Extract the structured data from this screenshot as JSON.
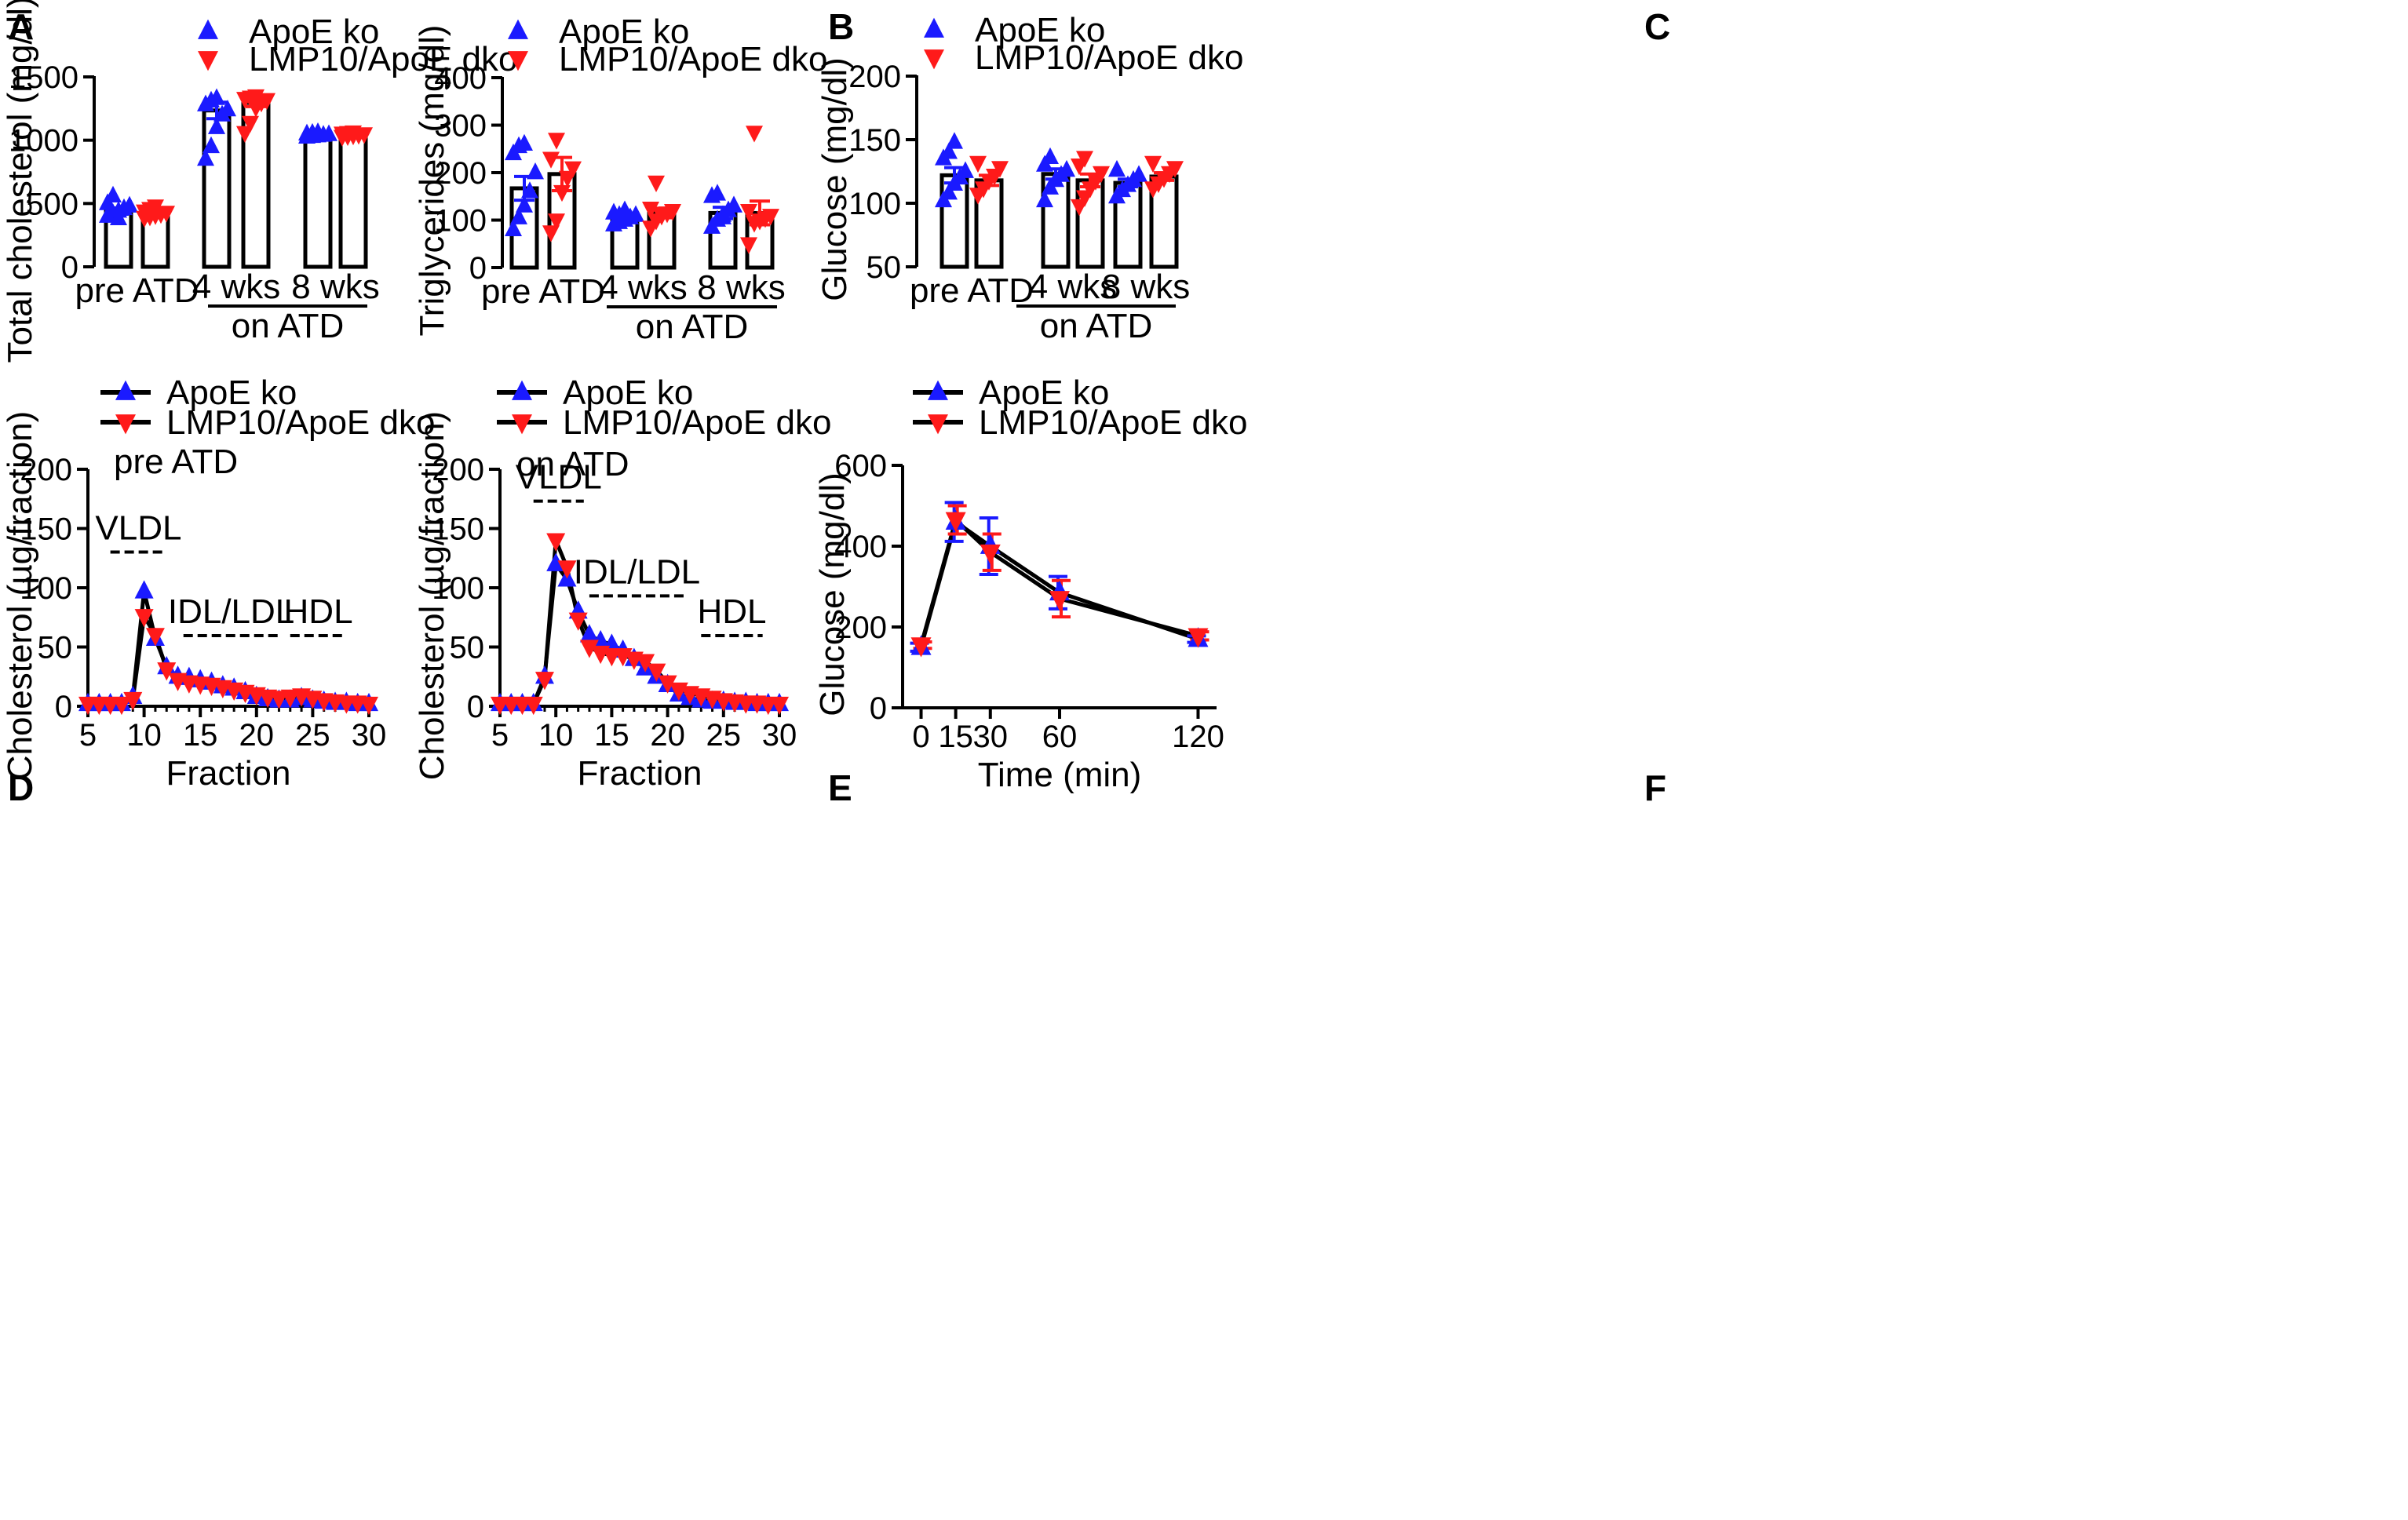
{
  "colors": {
    "series_a": "#1a1aff",
    "series_b": "#ff1a1a",
    "axis": "#000000"
  },
  "series_names": {
    "a": "ApoE ko",
    "b": "LMP10/ApoE dko"
  },
  "chart_data": [
    {
      "panel": "A",
      "type": "bar",
      "ylabel": "Total cholesterol (mg/dl)",
      "ylim": [
        0,
        1500
      ],
      "yticks": [
        "0",
        "500",
        "1000",
        "1500"
      ],
      "categories": [
        "pre ATD",
        "4 wks",
        "8 wks"
      ],
      "group_label": "on ATD",
      "legend": [
        "ApoE ko",
        "LMP10/ApoE dko"
      ],
      "series": [
        {
          "name": "ApoE ko",
          "values": [
            440,
            1235,
            1040
          ],
          "sem": [
            25,
            65,
            8
          ],
          "points": [
            [
              400,
              420,
              440,
              460,
              480,
              500,
              560,
              380
            ],
            [
              850,
              950,
              1100,
              1200,
              1240,
              1280,
              1310,
              1330
            ],
            [
              1025,
              1030,
              1035,
              1040,
              1045,
              1050,
              1055,
              1060
            ]
          ]
        },
        {
          "name": "LMP10/ApoE dko",
          "values": [
            415,
            1295,
            1045
          ],
          "sem": [
            15,
            30,
            6
          ],
          "points": [
            [
              390,
              400,
              410,
              420,
              430,
              440,
              460,
              480
            ],
            [
              1060,
              1140,
              1260,
              1300,
              1320,
              1330,
              1340,
              1350
            ],
            [
              1030,
              1035,
              1040,
              1045,
              1050,
              1055,
              1060,
              1065
            ]
          ]
        }
      ]
    },
    {
      "panel": "B",
      "type": "bar",
      "ylabel": "Triglycerides (mg/dl)",
      "ylim": [
        0,
        400
      ],
      "yticks": [
        "0",
        "100",
        "200",
        "300",
        "400"
      ],
      "categories": [
        "pre ATD",
        "4 wks",
        "8 wks"
      ],
      "group_label": "on ATD",
      "legend": [
        "ApoE ko",
        "LMP10/ApoE dko"
      ],
      "series": [
        {
          "name": "ApoE ko",
          "values": [
            167,
            105,
            115
          ],
          "sem": [
            25,
            8,
            12
          ],
          "points": [
            [
              80,
              105,
              130,
              160,
              200,
              240,
              255,
              260
            ],
            [
              90,
              95,
              100,
              105,
              110,
              115,
              110,
              120
            ],
            [
              85,
              100,
              110,
              120,
              130,
              150,
              155,
              105
            ]
          ]
        },
        {
          "name": "LMP10/ApoE dko",
          "values": [
            197,
            115,
            115
          ],
          "sem": [
            35,
            10,
            25
          ],
          "points": [
            [
              75,
              100,
              160,
              190,
              210,
              230,
              270
            ],
            [
              85,
              100,
              110,
              115,
              120,
              125,
              180
            ],
            [
              50,
              95,
              100,
              105,
              110,
              120,
              285
            ]
          ]
        }
      ]
    },
    {
      "panel": "C",
      "type": "bar",
      "ylabel": "Glucose (mg/dl)",
      "ylim": [
        50,
        200
      ],
      "yticks": [
        "50",
        "100",
        "150",
        "200"
      ],
      "categories": [
        "pre ATD",
        "4 wks",
        "8 wks"
      ],
      "group_label": "on ATD",
      "legend": [
        "ApoE ko",
        "LMP10/ApoE dko"
      ],
      "series": [
        {
          "name": "ApoE ko",
          "values": [
            122,
            123,
            116
          ],
          "sem": [
            6,
            4,
            3
          ],
          "points": [
            [
              102,
              108,
              115,
              120,
              125,
              135,
              140,
              148
            ],
            [
              102,
              112,
              118,
              122,
              126,
              130,
              136
            ],
            [
              105,
              110,
              114,
              118,
              122,
              126
            ]
          ]
        },
        {
          "name": "LMP10/ApoE dko",
          "values": [
            118,
            118,
            121
          ],
          "sem": [
            4,
            5,
            3
          ],
          "points": [
            [
              107,
              112,
              118,
              122,
              128,
              132
            ],
            [
              98,
              105,
              112,
              118,
              124,
              130,
              136
            ],
            [
              112,
              116,
              120,
              124,
              128,
              132
            ]
          ]
        }
      ]
    },
    {
      "panel": "D",
      "type": "line",
      "xlabel": "Fraction",
      "ylabel": "Cholesterol (µg/fraction)",
      "xlim": [
        5,
        30
      ],
      "ylim": [
        0,
        200
      ],
      "xticks": [
        "5",
        "10",
        "15",
        "20",
        "25",
        "30"
      ],
      "yticks": [
        "0",
        "50",
        "100",
        "150",
        "200"
      ],
      "annotation": "pre ATD",
      "regions": [
        {
          "label": "VLDL",
          "x": [
            7,
            12
          ]
        },
        {
          "label": "IDL/LDL",
          "x": [
            13.5,
            22
          ]
        },
        {
          "label": "HDL",
          "x": [
            23,
            28
          ]
        }
      ],
      "x": [
        5,
        6,
        7,
        8,
        9,
        10,
        11,
        12,
        13,
        14,
        15,
        16,
        17,
        18,
        19,
        20,
        21,
        22,
        23,
        24,
        25,
        26,
        27,
        28,
        29,
        30
      ],
      "series": [
        {
          "name": "ApoE ko",
          "values": [
            2,
            2,
            2,
            2,
            8,
            97,
            57,
            33,
            25,
            24,
            22,
            20,
            17,
            15,
            12,
            8,
            6,
            5,
            5,
            7,
            5,
            4,
            3,
            3,
            2,
            2
          ]
        },
        {
          "name": "LMP10/ApoE dko",
          "values": [
            2,
            2,
            2,
            2,
            6,
            76,
            60,
            31,
            22,
            20,
            19,
            18,
            16,
            14,
            12,
            10,
            8,
            7,
            8,
            9,
            7,
            5,
            4,
            3,
            3,
            2
          ]
        }
      ]
    },
    {
      "panel": "E",
      "type": "line",
      "xlabel": "Fraction",
      "ylabel": "Cholesterol (µg/fraction)",
      "xlim": [
        5,
        30
      ],
      "ylim": [
        0,
        200
      ],
      "xticks": [
        "5",
        "10",
        "15",
        "20",
        "25",
        "30"
      ],
      "yticks": [
        "0",
        "50",
        "100",
        "150",
        "200"
      ],
      "annotation": "on ATD",
      "regions": [
        {
          "label": "VLDL",
          "x": [
            8,
            12.5
          ]
        },
        {
          "label": "IDL/LDL",
          "x": [
            13,
            21.5
          ]
        },
        {
          "label": "HDL",
          "x": [
            23,
            28.5
          ]
        }
      ],
      "x": [
        5,
        6,
        7,
        8,
        9,
        10,
        11,
        12,
        13,
        14,
        15,
        16,
        17,
        18,
        19,
        20,
        21,
        22,
        23,
        24,
        25,
        26,
        27,
        28,
        29,
        30
      ],
      "series": [
        {
          "name": "ApoE ko",
          "values": [
            2,
            2,
            2,
            2,
            25,
            120,
            107,
            80,
            60,
            55,
            52,
            47,
            40,
            32,
            25,
            18,
            10,
            7,
            5,
            4,
            4,
            3,
            3,
            2,
            2,
            2
          ]
        },
        {
          "name": "LMP10/ApoE dko",
          "values": [
            2,
            2,
            2,
            2,
            23,
            140,
            117,
            73,
            50,
            45,
            43,
            43,
            40,
            38,
            30,
            20,
            14,
            11,
            9,
            7,
            5,
            4,
            3,
            3,
            2,
            2
          ]
        }
      ]
    },
    {
      "panel": "F",
      "type": "line",
      "xlabel": "Time (min)",
      "ylabel": "Glucose (mg/dl)",
      "xlim": [
        -8,
        128
      ],
      "ylim": [
        0,
        600
      ],
      "xticks": [
        "0",
        "15",
        "30",
        "60",
        "120"
      ],
      "xtick_values": [
        0,
        15,
        30,
        60,
        120
      ],
      "yticks": [
        "0",
        "200",
        "400",
        "600"
      ],
      "x": [
        0,
        15,
        30,
        60,
        120
      ],
      "series": [
        {
          "name": "ApoE ko",
          "values": [
            150,
            460,
            400,
            285,
            170
          ],
          "err": [
            10,
            48,
            70,
            40,
            8
          ]
        },
        {
          "name": "LMP10/ApoE dko",
          "values": [
            155,
            465,
            385,
            270,
            178
          ],
          "err": [
            8,
            35,
            45,
            45,
            10
          ]
        }
      ]
    }
  ]
}
